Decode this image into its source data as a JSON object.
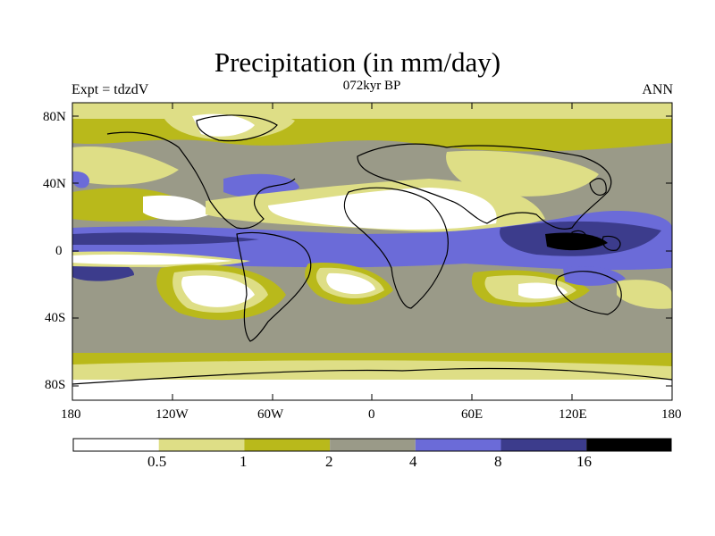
{
  "header": {
    "title": "Precipitation (in mm/day)",
    "left_label": "Expt = tdzdV",
    "center_label": "072kyr BP",
    "right_label": "ANN"
  },
  "axes": {
    "lat_labels": [
      "80N",
      "40N",
      "0",
      "40S",
      "80S"
    ],
    "lon_labels": [
      "180",
      "120W",
      "60W",
      "0",
      "60E",
      "120E",
      "180"
    ]
  },
  "colorbar": {
    "labels": [
      "0.5",
      "1",
      "2",
      "4",
      "8",
      "16"
    ],
    "colors": [
      "#ffffff",
      "#dede86",
      "#b9b91b",
      "#9a9a88",
      "#6b6bd8",
      "#3c3c8c",
      "#000000"
    ]
  },
  "palette": {
    "dry": "#ffffff",
    "low": "#dede86",
    "mid": "#b9b91b",
    "grey": "#9a9a88",
    "wet": "#6b6bd8",
    "wetter": "#3c3c8c",
    "wettest": "#000000"
  }
}
